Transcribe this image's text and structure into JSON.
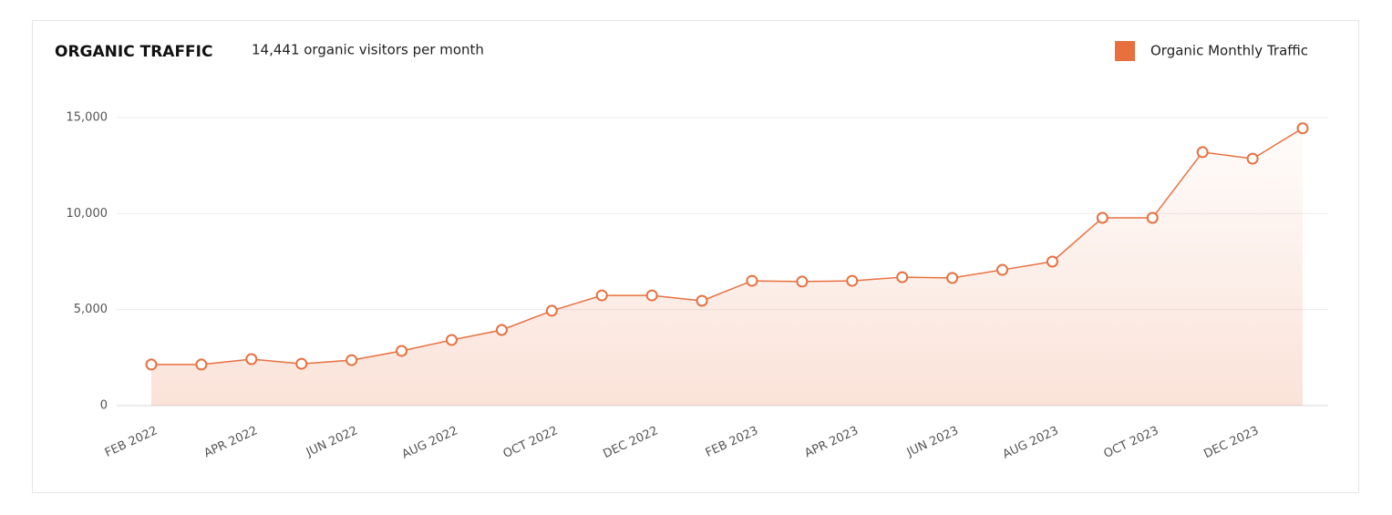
{
  "chart_data": {
    "type": "line",
    "title": "ORGANIC TRAFFIC",
    "subtitle": "14,441 organic visitors per month",
    "categories": [
      "FEB 2022",
      null,
      "APR 2022",
      null,
      "JUN 2022",
      null,
      "AUG 2022",
      null,
      "OCT 2022",
      null,
      "DEC 2022",
      null,
      "FEB 2023",
      null,
      "APR 2023",
      null,
      "JUN 2023",
      null,
      "AUG 2023",
      null,
      "OCT 2023",
      null,
      "DEC 2023",
      null
    ],
    "series": [
      {
        "name": "Organic Monthly Traffic",
        "color": "#e8703f",
        "values": [
          2140,
          2140,
          2420,
          2180,
          2370,
          2850,
          3420,
          3940,
          4940,
          5740,
          5740,
          5460,
          6500,
          6460,
          6500,
          6690,
          6650,
          7070,
          7500,
          9780,
          9780,
          13200,
          12860,
          14441
        ]
      }
    ],
    "ylim": [
      0,
      15000
    ],
    "yticks": [
      0,
      {
        "value": 5000,
        "label": "5,000"
      },
      {
        "value": 10000,
        "label": "10,000"
      },
      {
        "value": 15000,
        "label": "15,000"
      }
    ],
    "grid": true
  }
}
